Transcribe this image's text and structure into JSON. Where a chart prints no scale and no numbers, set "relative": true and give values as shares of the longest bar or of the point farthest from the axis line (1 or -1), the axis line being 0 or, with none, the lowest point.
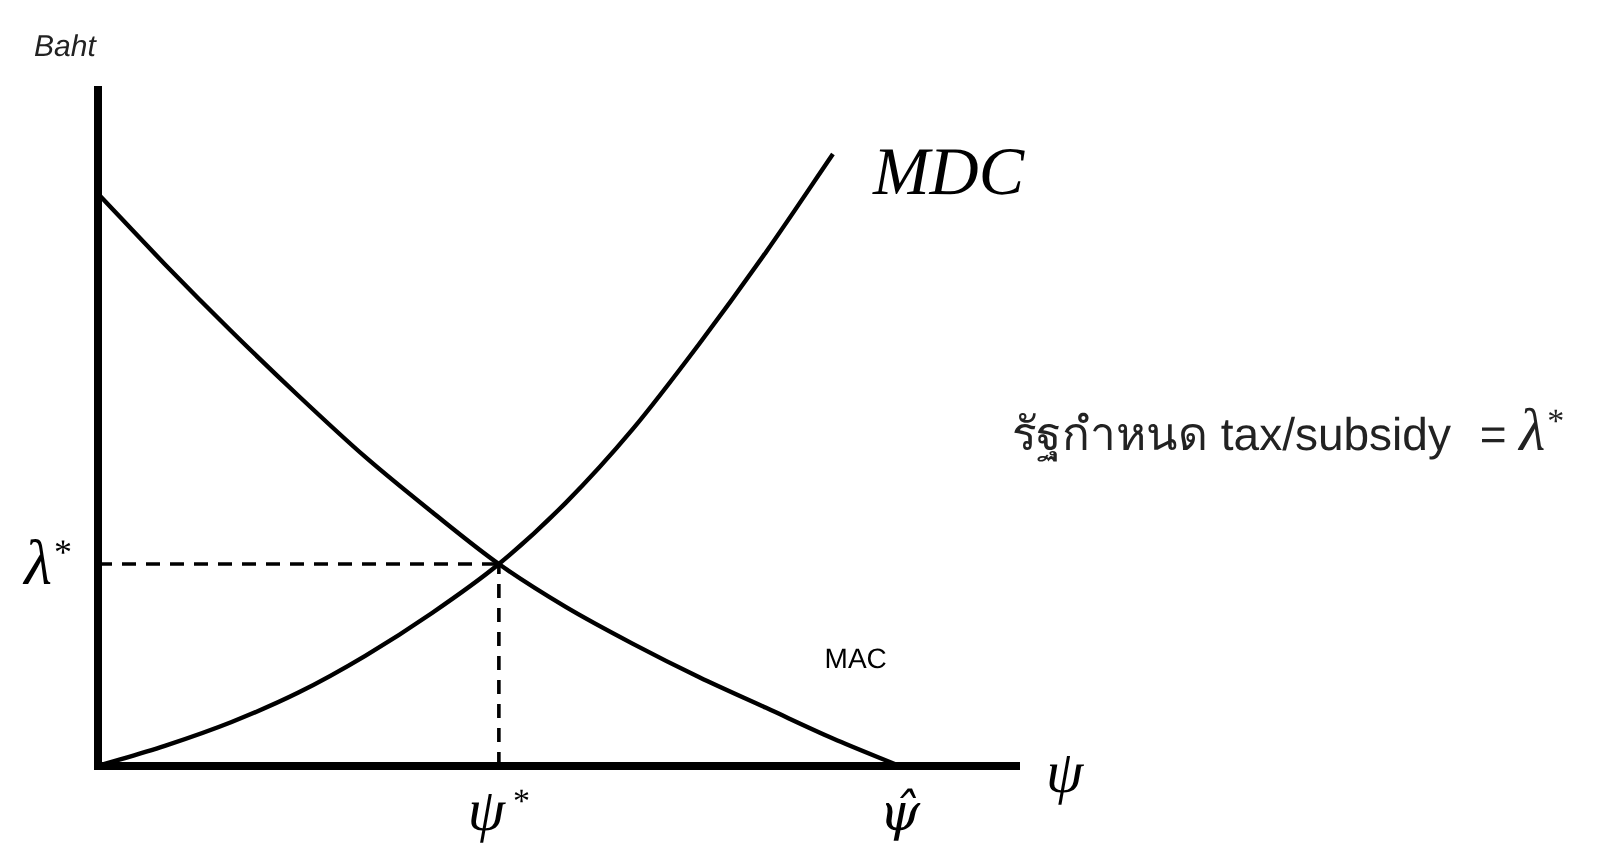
{
  "chart_data": {
    "type": "line",
    "relative": true,
    "ylabel": "Baht",
    "xlabel": "ψ",
    "categories": [
      null,
      null,
      null,
      null,
      null,
      null,
      "ψ$^{*}$",
      null,
      null,
      null,
      null,
      null,
      "ψ̂",
      null
    ],
    "series": [
      {
        "name": "MDC",
        "color": "#000000",
        "values": [
          0,
          0.033,
          0.072,
          0.12,
          0.18,
          0.25,
          0.33,
          0.43,
          0.55,
          0.69,
          0.84,
          1,
          null,
          null
        ]
      },
      {
        "name": "MAC",
        "color": "#000000",
        "values": [
          0.935,
          0.82,
          0.71,
          0.605,
          0.505,
          0.415,
          0.33,
          0.26,
          0.2,
          0.145,
          0.095,
          0.045,
          0,
          null
        ]
      },
      {
        "color": "#000000",
        "values": [
          0.33,
          0.33,
          0.33,
          0.33,
          0.33,
          0.33,
          0.33,
          null,
          null,
          null,
          null,
          null,
          null,
          null
        ],
        "line_style": "dashed"
      },
      {
        "color": "#000000",
        "x": [
          "ψ$^{*}$",
          "ψ$^{*}$"
        ],
        "values": [
          0,
          0.33
        ],
        "line_style": "dashed"
      }
    ],
    "annotations": [
      "λ$^{*}$",
      "รัฐกำหนด tax/subsidy = λ$^{*}$"
    ]
  }
}
